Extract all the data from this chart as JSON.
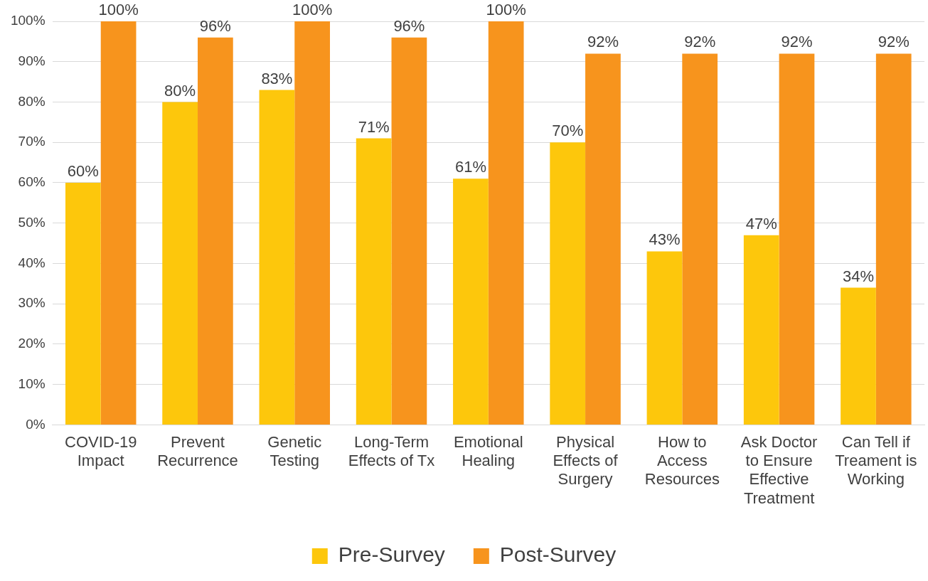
{
  "chart_data": {
    "type": "bar",
    "categories": [
      "COVID-19 Impact",
      "Prevent Recurrence",
      "Genetic Testing",
      "Long-Term Effects of Tx",
      "Emotional Healing",
      "Physical Effects of Surgery",
      "How to Access Resources",
      "Ask Doctor to Ensure Effective Treatment",
      "Can Tell if Treament is Working"
    ],
    "series": [
      {
        "name": "Pre-Survey",
        "color": "#fdc70c",
        "values": [
          60,
          80,
          83,
          71,
          61,
          70,
          43,
          47,
          34
        ],
        "value_labels": [
          "60%",
          "80%",
          "83%",
          "71%",
          "61%",
          "70%",
          "43%",
          "47%",
          "34%"
        ]
      },
      {
        "name": "Post-Survey",
        "color": "#f7941d",
        "values": [
          100,
          96,
          100,
          96,
          100,
          92,
          92,
          92,
          92
        ],
        "value_labels": [
          "100%",
          "96%",
          "100%",
          "96%",
          "100%",
          "92%",
          "92%",
          "92%",
          "92%"
        ]
      }
    ],
    "ylim": [
      0,
      100
    ],
    "yticks": [
      {
        "value": 0,
        "label": "0%"
      },
      {
        "value": 10,
        "label": "10%"
      },
      {
        "value": 20,
        "label": "20%"
      },
      {
        "value": 30,
        "label": "30%"
      },
      {
        "value": 40,
        "label": "40%"
      },
      {
        "value": 50,
        "label": "50%"
      },
      {
        "value": 60,
        "label": "60%"
      },
      {
        "value": 70,
        "label": "70%"
      },
      {
        "value": 80,
        "label": "80%"
      },
      {
        "value": 90,
        "label": "90%"
      },
      {
        "value": 100,
        "label": "100%"
      }
    ],
    "grid": "y",
    "legend": "bottom"
  }
}
